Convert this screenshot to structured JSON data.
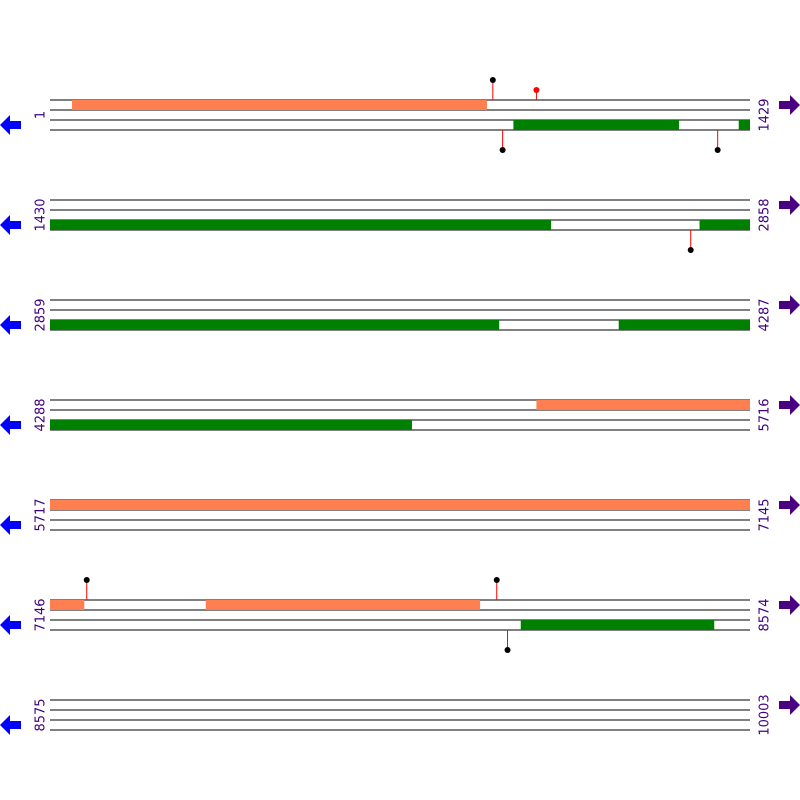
{
  "rows": [
    {
      "start": 1,
      "end": 1429,
      "segments": [
        {
          "start": 46,
          "end": 892,
          "strand": "top",
          "color": "#ff7f50"
        },
        {
          "start": 947,
          "end": 1284,
          "strand": "bottom",
          "color": "#008000"
        },
        {
          "start": 1407,
          "end": 1429,
          "strand": "bottom",
          "color": "#008000"
        }
      ],
      "markers": [
        {
          "pos": 905,
          "strand": "top",
          "color": "#000000"
        },
        {
          "pos": 994,
          "strand": "top",
          "color": "#ff0000"
        },
        {
          "pos": 925,
          "strand": "bottom",
          "color": "#000000"
        },
        {
          "pos": 1364,
          "strand": "bottom",
          "color": "#000000"
        }
      ]
    },
    {
      "start": 1430,
      "end": 2858,
      "segments": [
        {
          "start": 1430,
          "end": 2452,
          "strand": "bottom",
          "color": "#008000"
        },
        {
          "start": 2756,
          "end": 2858,
          "strand": "bottom",
          "color": "#008000"
        }
      ],
      "markers": [
        {
          "pos": 2738,
          "strand": "bottom",
          "color": "#000000"
        }
      ]
    },
    {
      "start": 2859,
      "end": 4287,
      "segments": [
        {
          "start": 2859,
          "end": 3775,
          "strand": "bottom",
          "color": "#008000"
        },
        {
          "start": 4020,
          "end": 4287,
          "strand": "bottom",
          "color": "#008000"
        }
      ],
      "markers": []
    },
    {
      "start": 4288,
      "end": 5716,
      "segments": [
        {
          "start": 5281,
          "end": 5716,
          "strand": "top",
          "color": "#ff7f50"
        },
        {
          "start": 4288,
          "end": 5026,
          "strand": "bottom",
          "color": "#008000"
        }
      ],
      "markers": []
    },
    {
      "start": 5717,
      "end": 7145,
      "segments": [
        {
          "start": 5717,
          "end": 7145,
          "strand": "top",
          "color": "#ff7f50"
        }
      ],
      "markers": []
    },
    {
      "start": 7146,
      "end": 8574,
      "segments": [
        {
          "start": 7146,
          "end": 7215,
          "strand": "top",
          "color": "#ff7f50"
        },
        {
          "start": 7464,
          "end": 8023,
          "strand": "top",
          "color": "#ff7f50"
        },
        {
          "start": 8107,
          "end": 8501,
          "strand": "bottom",
          "color": "#008000"
        }
      ],
      "markers": [
        {
          "pos": 7221,
          "strand": "top",
          "color": "#000000"
        },
        {
          "pos": 8058,
          "strand": "top",
          "color": "#000000"
        },
        {
          "pos": 8080,
          "strand": "bottom",
          "color": "#000000"
        }
      ]
    },
    {
      "start": 8575,
      "end": 10003,
      "segments": [],
      "markers": []
    }
  ]
}
